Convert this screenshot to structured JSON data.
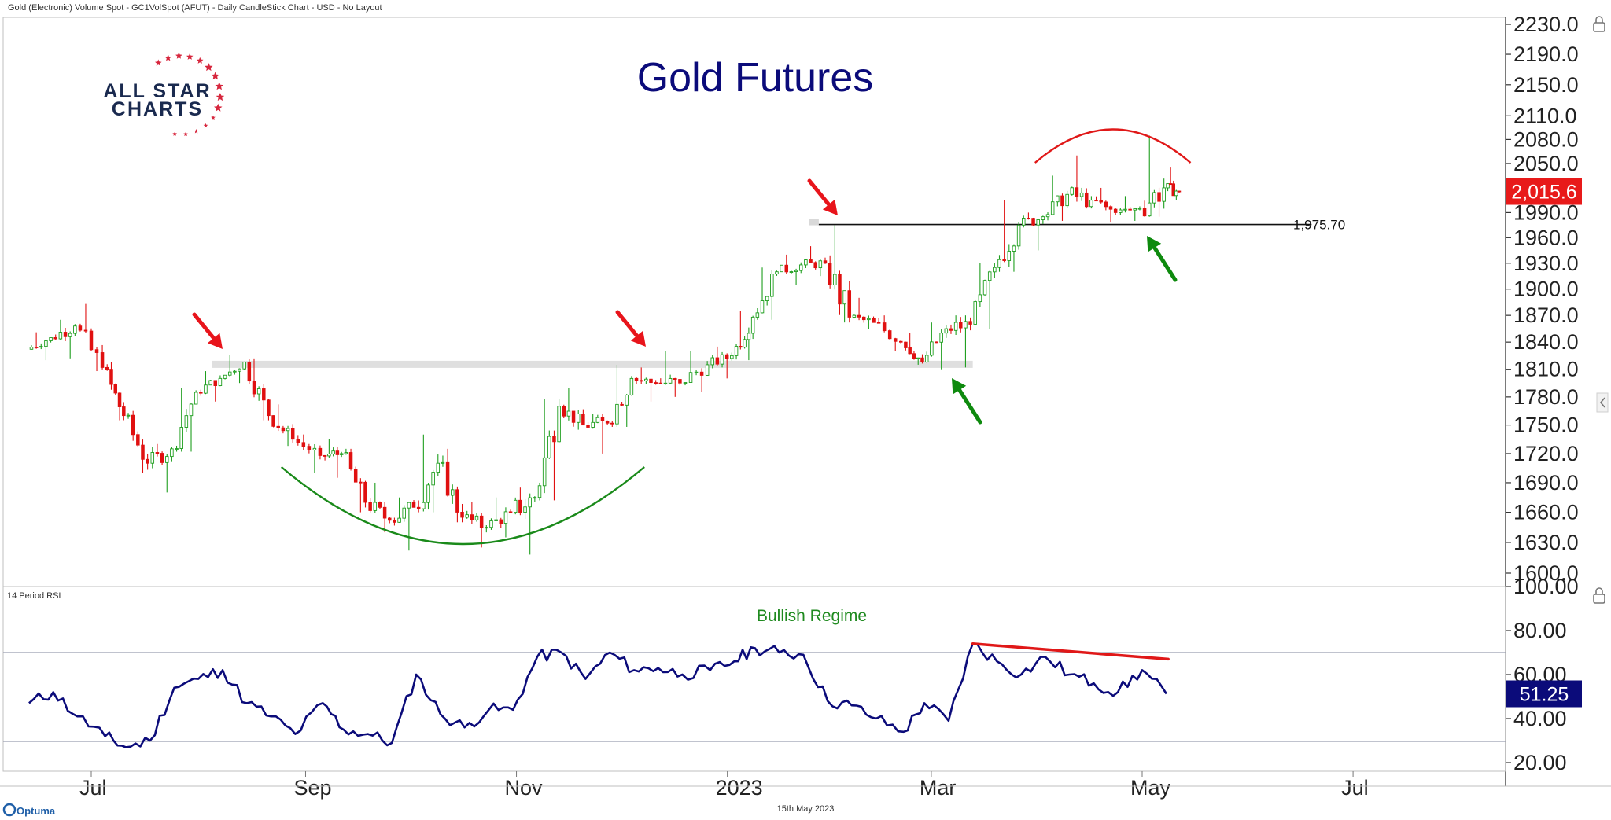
{
  "header": {
    "caption": "Gold (Electronic) Volume Spot - GC1VolSpot (AFUT) - Daily CandleStick Chart - USD - No Layout"
  },
  "logo": {
    "line1": "ALL STAR",
    "line2": "CHARTS",
    "star_color": "#d7263d",
    "text_color": "#1a2a4f"
  },
  "footer": {
    "date": "15th May 2023",
    "brand": "Optuma"
  },
  "colors": {
    "up": "#1e9e1e",
    "down": "#e01010",
    "title": "#0b0b7a",
    "rsi_line": "#0b0b7a",
    "resistance_arrow": "#e8141b",
    "support_arrow": "#0e8a0e",
    "bowl": "#1a8a1a",
    "dome": "#e01818",
    "zone": "#d9d9d9",
    "last_price_bg": "#e81a1a",
    "rsi_badge_bg": "#0b0b7a"
  },
  "chart_data": [
    {
      "type": "candlestick",
      "title": "Gold Futures",
      "x_tick_labels": [
        "Jul",
        "Sep",
        "Nov",
        "2023",
        "Mar",
        "May",
        "Jul"
      ],
      "y_ticks": [
        2230.0,
        2190.0,
        2150.0,
        2110.0,
        2080.0,
        2050.0,
        1990.0,
        1960.0,
        1930.0,
        1900.0,
        1870.0,
        1840.0,
        1810.0,
        1780.0,
        1750.0,
        1720.0,
        1690.0,
        1660.0,
        1630.0,
        1600.0
      ],
      "y_tick_labels": [
        "2230.0",
        "2190.0",
        "2150.0",
        "2110.0",
        "2080.0",
        "2050.0",
        "1990.0",
        "1960.0",
        "1930.0",
        "1900.0",
        "1870.0",
        "1840.0",
        "1810.0",
        "1780.0",
        "1750.0",
        "1720.0",
        "1690.0",
        "1660.0",
        "1630.0",
        "1600.0"
      ],
      "y_scale": "log",
      "ylim": [
        1580,
        2250
      ],
      "last_price_label": "2,015.6",
      "last_price": 2015.6,
      "horizontal_line": {
        "value": 1975.7,
        "label": "1,975.70",
        "start": "2023-01-27",
        "end": "2023-06-19"
      },
      "resistance_zone": {
        "value": 1815,
        "start": "2022-08-05",
        "end": "2023-03-13"
      },
      "annotations": [
        {
          "kind": "resistance-arrow",
          "date": "2022-08-08"
        },
        {
          "kind": "resistance-arrow",
          "date": "2022-11-30"
        },
        {
          "kind": "resistance-arrow",
          "date": "2023-01-26"
        },
        {
          "kind": "support-arrow",
          "date": "2023-03-08"
        },
        {
          "kind": "support-arrow",
          "date": "2023-05-02"
        },
        {
          "kind": "rounded-bottom",
          "start": "2022-08-25",
          "end": "2022-12-08"
        },
        {
          "kind": "rounded-top",
          "start": "2023-03-31",
          "end": "2023-05-15"
        }
      ],
      "candles": [
        {
          "d": "2022-06-13",
          "o": 1832,
          "h": 1851,
          "l": 1820,
          "c": 1845
        },
        {
          "d": "2022-06-20",
          "o": 1845,
          "h": 1865,
          "l": 1822,
          "c": 1858
        },
        {
          "d": "2022-06-27",
          "o": 1858,
          "h": 1883,
          "l": 1808,
          "c": 1812
        },
        {
          "d": "2022-07-05",
          "o": 1812,
          "h": 1818,
          "l": 1755,
          "c": 1760
        },
        {
          "d": "2022-07-11",
          "o": 1760,
          "h": 1765,
          "l": 1700,
          "c": 1710
        },
        {
          "d": "2022-07-18",
          "o": 1710,
          "h": 1730,
          "l": 1680,
          "c": 1725
        },
        {
          "d": "2022-07-25",
          "o": 1725,
          "h": 1790,
          "l": 1722,
          "c": 1785
        },
        {
          "d": "2022-08-01",
          "o": 1785,
          "h": 1808,
          "l": 1775,
          "c": 1800
        },
        {
          "d": "2022-08-08",
          "o": 1800,
          "h": 1826,
          "l": 1795,
          "c": 1818
        },
        {
          "d": "2022-08-15",
          "o": 1818,
          "h": 1822,
          "l": 1755,
          "c": 1760
        },
        {
          "d": "2022-08-22",
          "o": 1760,
          "h": 1772,
          "l": 1728,
          "c": 1735
        },
        {
          "d": "2022-08-29",
          "o": 1735,
          "h": 1740,
          "l": 1700,
          "c": 1718
        },
        {
          "d": "2022-09-06",
          "o": 1718,
          "h": 1735,
          "l": 1695,
          "c": 1720
        },
        {
          "d": "2022-09-12",
          "o": 1720,
          "h": 1725,
          "l": 1660,
          "c": 1670
        },
        {
          "d": "2022-09-19",
          "o": 1670,
          "h": 1690,
          "l": 1640,
          "c": 1652
        },
        {
          "d": "2022-09-26",
          "o": 1652,
          "h": 1675,
          "l": 1622,
          "c": 1665
        },
        {
          "d": "2022-10-03",
          "o": 1665,
          "h": 1740,
          "l": 1660,
          "c": 1710
        },
        {
          "d": "2022-10-10",
          "o": 1710,
          "h": 1725,
          "l": 1650,
          "c": 1655
        },
        {
          "d": "2022-10-17",
          "o": 1655,
          "h": 1670,
          "l": 1625,
          "c": 1645
        },
        {
          "d": "2022-10-24",
          "o": 1645,
          "h": 1675,
          "l": 1635,
          "c": 1660
        },
        {
          "d": "2022-10-31",
          "o": 1660,
          "h": 1685,
          "l": 1618,
          "c": 1675
        },
        {
          "d": "2022-11-07",
          "o": 1675,
          "h": 1778,
          "l": 1672,
          "c": 1770
        },
        {
          "d": "2022-11-14",
          "o": 1770,
          "h": 1790,
          "l": 1745,
          "c": 1750
        },
        {
          "d": "2022-11-21",
          "o": 1750,
          "h": 1762,
          "l": 1720,
          "c": 1752
        },
        {
          "d": "2022-11-28",
          "o": 1752,
          "h": 1815,
          "l": 1748,
          "c": 1800
        },
        {
          "d": "2022-12-05",
          "o": 1800,
          "h": 1812,
          "l": 1775,
          "c": 1795
        },
        {
          "d": "2022-12-12",
          "o": 1795,
          "h": 1830,
          "l": 1780,
          "c": 1795
        },
        {
          "d": "2022-12-19",
          "o": 1795,
          "h": 1830,
          "l": 1785,
          "c": 1815
        },
        {
          "d": "2022-12-27",
          "o": 1815,
          "h": 1835,
          "l": 1800,
          "c": 1825
        },
        {
          "d": "2023-01-03",
          "o": 1825,
          "h": 1875,
          "l": 1820,
          "c": 1868
        },
        {
          "d": "2023-01-09",
          "o": 1868,
          "h": 1925,
          "l": 1865,
          "c": 1920
        },
        {
          "d": "2023-01-16",
          "o": 1920,
          "h": 1940,
          "l": 1905,
          "c": 1928
        },
        {
          "d": "2023-01-23",
          "o": 1928,
          "h": 1950,
          "l": 1915,
          "c": 1930
        },
        {
          "d": "2023-01-30",
          "o": 1930,
          "h": 1975,
          "l": 1862,
          "c": 1868
        },
        {
          "d": "2023-02-06",
          "o": 1868,
          "h": 1890,
          "l": 1855,
          "c": 1862
        },
        {
          "d": "2023-02-13",
          "o": 1862,
          "h": 1870,
          "l": 1830,
          "c": 1840
        },
        {
          "d": "2023-02-21",
          "o": 1840,
          "h": 1850,
          "l": 1815,
          "c": 1818
        },
        {
          "d": "2023-02-27",
          "o": 1818,
          "h": 1862,
          "l": 1810,
          "c": 1855
        },
        {
          "d": "2023-03-06",
          "o": 1855,
          "h": 1870,
          "l": 1812,
          "c": 1860
        },
        {
          "d": "2023-03-13",
          "o": 1860,
          "h": 1930,
          "l": 1855,
          "c": 1925
        },
        {
          "d": "2023-03-20",
          "o": 1925,
          "h": 2005,
          "l": 1920,
          "c": 1975
        },
        {
          "d": "2023-03-27",
          "o": 1975,
          "h": 1990,
          "l": 1945,
          "c": 1985
        },
        {
          "d": "2023-04-03",
          "o": 1985,
          "h": 2035,
          "l": 1980,
          "c": 2012
        },
        {
          "d": "2023-04-10",
          "o": 2012,
          "h": 2060,
          "l": 1995,
          "c": 2005
        },
        {
          "d": "2023-04-17",
          "o": 2005,
          "h": 2020,
          "l": 1978,
          "c": 1990
        },
        {
          "d": "2023-04-24",
          "o": 1990,
          "h": 2010,
          "l": 1980,
          "c": 1995
        },
        {
          "d": "2023-05-01",
          "o": 1995,
          "h": 2085,
          "l": 1985,
          "c": 2020
        },
        {
          "d": "2023-05-08",
          "o": 2020,
          "h": 2045,
          "l": 2005,
          "c": 2015.6
        }
      ]
    },
    {
      "type": "line",
      "title": "14 Period RSI",
      "annotation": "Bullish Regime",
      "y_ticks": [
        100.0,
        80.0,
        60.0,
        40.0,
        20.0
      ],
      "y_tick_labels": [
        "100.00",
        "80.00",
        "60.00",
        "40.00",
        "20.00"
      ],
      "ylim": [
        16,
        102
      ],
      "reference_lines": [
        70,
        30
      ],
      "last_value_label": "51.25",
      "last_value": 51.25,
      "divergence_line": {
        "start": "2023-03-13",
        "start_value": 74,
        "end": "2023-05-04",
        "end_value": 67
      },
      "points": [
        {
          "d": "2022-06-13",
          "v": 47
        },
        {
          "d": "2022-06-20",
          "v": 52
        },
        {
          "d": "2022-06-27",
          "v": 41
        },
        {
          "d": "2022-07-05",
          "v": 32
        },
        {
          "d": "2022-07-11",
          "v": 27
        },
        {
          "d": "2022-07-18",
          "v": 30
        },
        {
          "d": "2022-07-25",
          "v": 54
        },
        {
          "d": "2022-08-01",
          "v": 58
        },
        {
          "d": "2022-08-08",
          "v": 62
        },
        {
          "d": "2022-08-15",
          "v": 47
        },
        {
          "d": "2022-08-22",
          "v": 41
        },
        {
          "d": "2022-08-29",
          "v": 33
        },
        {
          "d": "2022-09-06",
          "v": 47
        },
        {
          "d": "2022-09-12",
          "v": 35
        },
        {
          "d": "2022-09-19",
          "v": 33
        },
        {
          "d": "2022-09-26",
          "v": 29
        },
        {
          "d": "2022-10-03",
          "v": 60
        },
        {
          "d": "2022-10-10",
          "v": 42
        },
        {
          "d": "2022-10-17",
          "v": 36
        },
        {
          "d": "2022-10-24",
          "v": 44
        },
        {
          "d": "2022-10-31",
          "v": 44
        },
        {
          "d": "2022-11-07",
          "v": 68
        },
        {
          "d": "2022-11-14",
          "v": 70
        },
        {
          "d": "2022-11-21",
          "v": 58
        },
        {
          "d": "2022-11-28",
          "v": 70
        },
        {
          "d": "2022-12-05",
          "v": 62
        },
        {
          "d": "2022-12-12",
          "v": 63
        },
        {
          "d": "2022-12-19",
          "v": 60
        },
        {
          "d": "2022-12-27",
          "v": 62
        },
        {
          "d": "2023-01-03",
          "v": 66
        },
        {
          "d": "2023-01-09",
          "v": 72
        },
        {
          "d": "2023-01-16",
          "v": 70
        },
        {
          "d": "2023-01-23",
          "v": 69
        },
        {
          "d": "2023-01-30",
          "v": 48
        },
        {
          "d": "2023-02-06",
          "v": 46
        },
        {
          "d": "2023-02-13",
          "v": 40
        },
        {
          "d": "2023-02-21",
          "v": 34
        },
        {
          "d": "2023-02-27",
          "v": 47
        },
        {
          "d": "2023-03-06",
          "v": 39
        },
        {
          "d": "2023-03-13",
          "v": 74
        },
        {
          "d": "2023-03-20",
          "v": 66
        },
        {
          "d": "2023-03-27",
          "v": 60
        },
        {
          "d": "2023-04-03",
          "v": 68
        },
        {
          "d": "2023-04-10",
          "v": 60
        },
        {
          "d": "2023-04-17",
          "v": 56
        },
        {
          "d": "2023-04-24",
          "v": 52
        },
        {
          "d": "2023-05-01",
          "v": 62
        },
        {
          "d": "2023-05-08",
          "v": 51.25
        }
      ]
    }
  ]
}
